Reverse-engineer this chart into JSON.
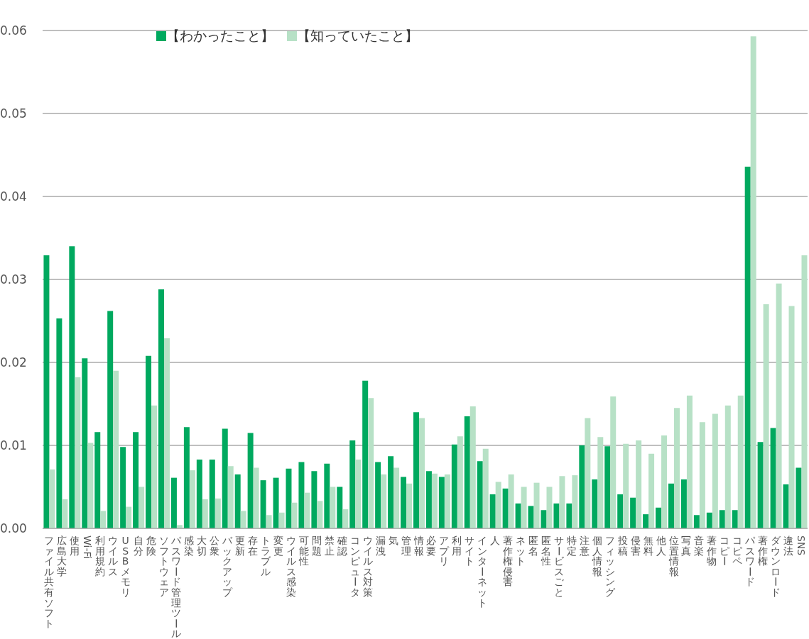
{
  "chart_data": {
    "type": "bar",
    "categories": [
      "ファイル共有ソフト",
      "広島大学",
      "使用",
      "Wi-Fi",
      "利用規約",
      "ウイルス",
      "USBメモリ",
      "自分",
      "危険",
      "ソフトウェア",
      "パスワード管理ツール",
      "感染",
      "大切",
      "公衆",
      "バックアップ",
      "更新",
      "存在",
      "トラブル",
      "変更",
      "ウイルス感染",
      "可能性",
      "問題",
      "禁止",
      "確認",
      "コンピュータ",
      "ウイルス対策",
      "漏洩",
      "気",
      "管理",
      "情報",
      "必要",
      "アプリ",
      "利用",
      "サイト",
      "インターネット",
      "人",
      "著作権侵害",
      "ネット",
      "匿名",
      "匿名性",
      "サービスごと",
      "特定",
      "注意",
      "個人情報",
      "フィッシング",
      "投稿",
      "侵害",
      "無料",
      "他人",
      "位置情報",
      "写真",
      "音楽",
      "著作物",
      "コピー",
      "コピペ",
      "パスワード",
      "著作権",
      "ダウンロード",
      "違法",
      "SNS"
    ],
    "series": [
      {
        "name": "【わかったこと】",
        "color": "#00a95f",
        "values": [
          0.0329,
          0.0253,
          0.034,
          0.0205,
          0.0116,
          0.0262,
          0.0098,
          0.0116,
          0.0208,
          0.0288,
          0.0061,
          0.0122,
          0.0083,
          0.0083,
          0.012,
          0.0065,
          0.0115,
          0.0058,
          0.0061,
          0.0072,
          0.008,
          0.0069,
          0.0078,
          0.005,
          0.0106,
          0.0178,
          0.008,
          0.0087,
          0.0062,
          0.014,
          0.0069,
          0.0062,
          0.0101,
          0.0135,
          0.0081,
          0.0041,
          0.0048,
          0.003,
          0.0027,
          0.0022,
          0.003,
          0.003,
          0.01,
          0.0059,
          0.0099,
          0.0041,
          0.0037,
          0.0017,
          0.0025,
          0.0054,
          0.0059,
          0.0016,
          0.0019,
          0.0022,
          0.0022,
          0.0436,
          0.0104,
          0.0121,
          0.0053,
          0.0073
        ]
      },
      {
        "name": "【知っていたこと】",
        "color": "#b7e1c6",
        "values": [
          0.0071,
          0.0035,
          0.0182,
          0.0103,
          0.0021,
          0.019,
          0.0026,
          0.005,
          0.0148,
          0.0229,
          0.0004,
          0.007,
          0.0035,
          0.0036,
          0.0075,
          0.0021,
          0.0073,
          0.0016,
          0.0019,
          0.0031,
          0.0043,
          0.0033,
          0.005,
          0.0023,
          0.0083,
          0.0157,
          0.0065,
          0.0073,
          0.0054,
          0.0133,
          0.0066,
          0.0065,
          0.0111,
          0.0147,
          0.0096,
          0.0056,
          0.0065,
          0.005,
          0.0055,
          0.005,
          0.0063,
          0.0064,
          0.0133,
          0.011,
          0.0159,
          0.0102,
          0.0106,
          0.009,
          0.0112,
          0.0145,
          0.016,
          0.0128,
          0.0138,
          0.0148,
          0.016,
          0.0593,
          0.027,
          0.0295,
          0.0268,
          0.0329
        ]
      }
    ],
    "ylim": [
      0,
      0.06
    ],
    "yticks": [
      {
        "value": 0,
        "label": "0.00"
      },
      {
        "value": 0.01,
        "label": "0.01"
      },
      {
        "value": 0.02,
        "label": "0.02"
      },
      {
        "value": 0.03,
        "label": "0.03"
      },
      {
        "value": 0.04,
        "label": "0.04"
      },
      {
        "value": 0.05,
        "label": "0.05"
      },
      {
        "value": 0.06,
        "label": "0.06"
      }
    ],
    "grid": "y",
    "legend": "top left"
  }
}
